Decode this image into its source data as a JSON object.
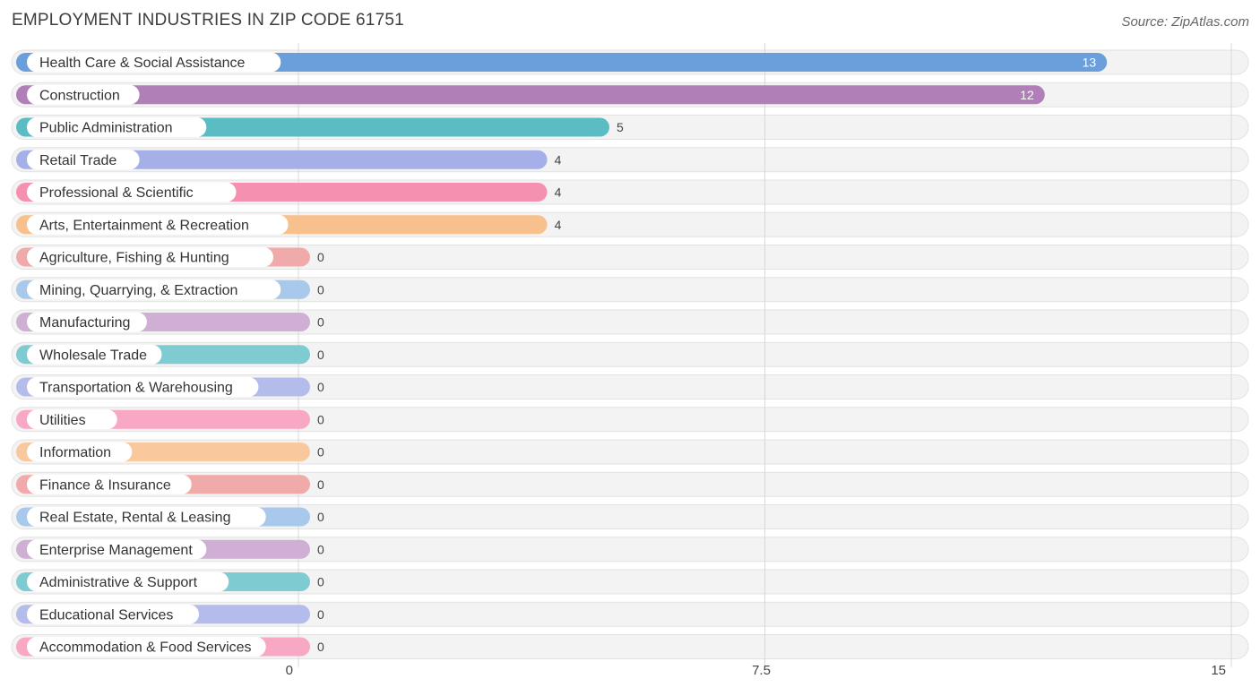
{
  "header": {
    "title": "EMPLOYMENT INDUSTRIES IN ZIP CODE 61751",
    "source": "Source: ZipAtlas.com"
  },
  "chart_data": {
    "type": "bar",
    "orientation": "horizontal",
    "title": "EMPLOYMENT INDUSTRIES IN ZIP CODE 61751",
    "xlim": [
      0,
      15
    ],
    "xticks": [
      0,
      7.5,
      15
    ],
    "xtick_labels": [
      "0",
      "7.5",
      "15"
    ],
    "grid": true,
    "categories": [
      "Health Care & Social Assistance",
      "Construction",
      "Public Administration",
      "Retail Trade",
      "Professional & Scientific",
      "Arts, Entertainment & Recreation",
      "Agriculture, Fishing & Hunting",
      "Mining, Quarrying, & Extraction",
      "Manufacturing",
      "Wholesale Trade",
      "Transportation & Warehousing",
      "Utilities",
      "Information",
      "Finance & Insurance",
      "Real Estate, Rental & Leasing",
      "Enterprise Management",
      "Administrative & Support",
      "Educational Services",
      "Accommodation & Food Services"
    ],
    "values": [
      13,
      12,
      5,
      4,
      4,
      4,
      0,
      0,
      0,
      0,
      0,
      0,
      0,
      0,
      0,
      0,
      0,
      0,
      0
    ],
    "colors": [
      "#6a9fdc",
      "#b07fb8",
      "#5bbdc4",
      "#a6b0e8",
      "#f590b0",
      "#f8c08c",
      "#f0aaaa",
      "#a8c8ec",
      "#cfb0d4",
      "#7fcbd2",
      "#b4bcec",
      "#f8a8c4",
      "#f9c89c",
      "#f0aaaa",
      "#a8c8ec",
      "#cfb0d4",
      "#7fcbd2",
      "#b4bcec",
      "#f8a8c4"
    ]
  }
}
